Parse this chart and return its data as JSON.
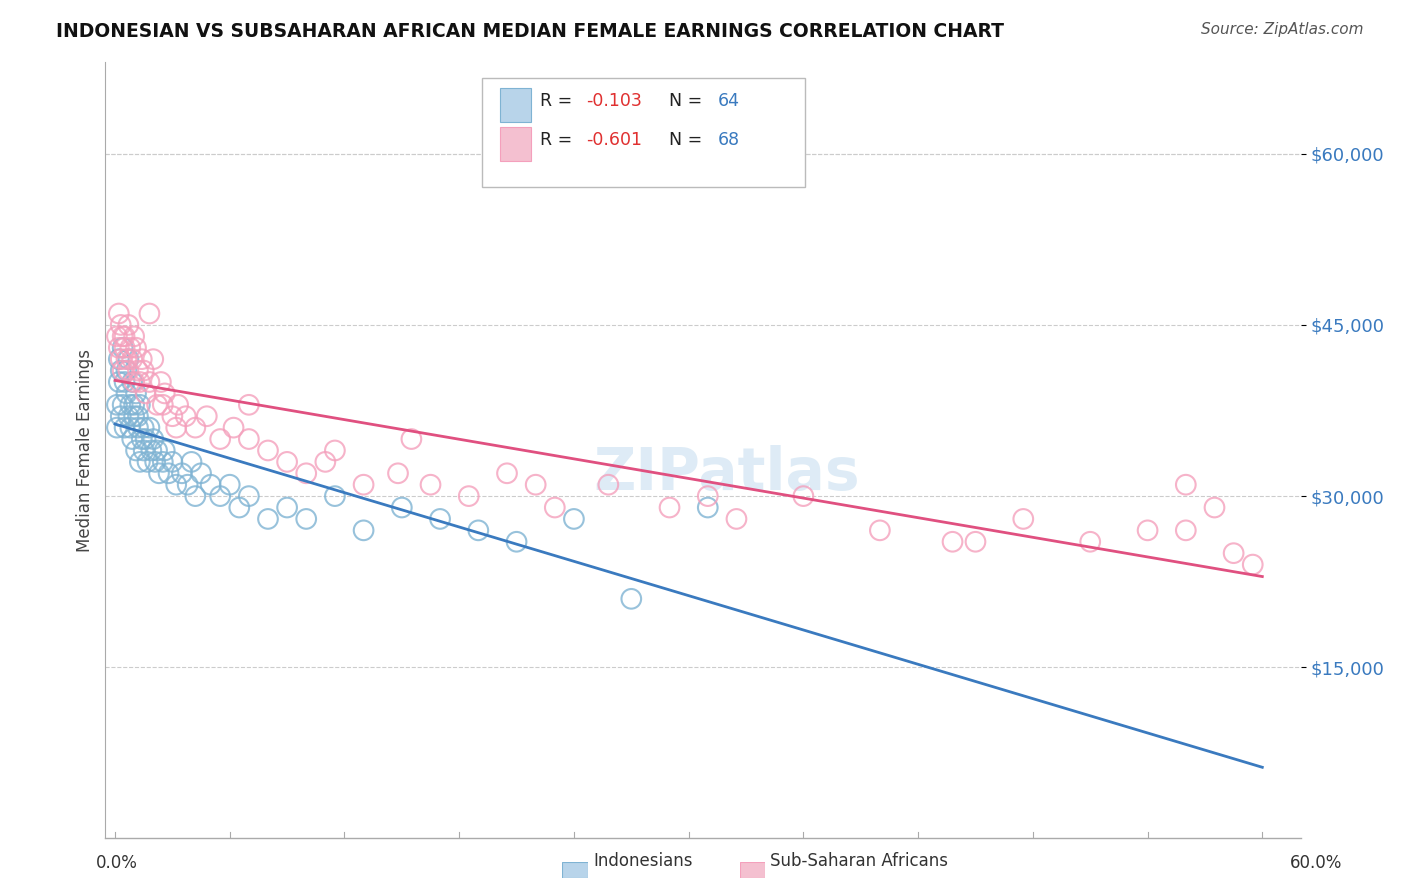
{
  "title": "INDONESIAN VS SUBSAHARAN AFRICAN MEDIAN FEMALE EARNINGS CORRELATION CHART",
  "source": "Source: ZipAtlas.com",
  "ylabel": "Median Female Earnings",
  "xlim": [
    -0.005,
    0.62
  ],
  "ylim": [
    0,
    68000
  ],
  "yticks": [
    15000,
    30000,
    45000,
    60000
  ],
  "ytick_labels": [
    "$15,000",
    "$30,000",
    "$45,000",
    "$60,000"
  ],
  "blue_color": "#7fb3d3",
  "pink_color": "#f4a0bc",
  "trend_blue_color": "#3a7abf",
  "trend_pink_color": "#e05080",
  "r_blue": "-0.103",
  "r_pink": "-0.601",
  "n_blue": "64",
  "n_pink": "68",
  "watermark": "ZIPatlas",
  "indonesian_x": [
    0.001,
    0.001,
    0.002,
    0.002,
    0.003,
    0.003,
    0.004,
    0.004,
    0.005,
    0.005,
    0.006,
    0.006,
    0.007,
    0.007,
    0.008,
    0.008,
    0.009,
    0.009,
    0.01,
    0.01,
    0.011,
    0.011,
    0.012,
    0.012,
    0.013,
    0.013,
    0.014,
    0.015,
    0.015,
    0.016,
    0.017,
    0.018,
    0.019,
    0.02,
    0.021,
    0.022,
    0.023,
    0.025,
    0.026,
    0.028,
    0.03,
    0.032,
    0.035,
    0.038,
    0.04,
    0.042,
    0.045,
    0.05,
    0.055,
    0.06,
    0.065,
    0.07,
    0.08,
    0.09,
    0.1,
    0.115,
    0.13,
    0.15,
    0.17,
    0.19,
    0.21,
    0.24,
    0.27,
    0.31
  ],
  "indonesian_y": [
    36000,
    38000,
    40000,
    42000,
    37000,
    41000,
    38000,
    43000,
    36000,
    40000,
    39000,
    41000,
    37000,
    42000,
    38000,
    36000,
    40000,
    35000,
    38000,
    37000,
    39000,
    34000,
    37000,
    36000,
    38000,
    33000,
    35000,
    36000,
    34000,
    35000,
    33000,
    36000,
    34000,
    35000,
    33000,
    34000,
    32000,
    33000,
    34000,
    32000,
    33000,
    31000,
    32000,
    31000,
    33000,
    30000,
    32000,
    31000,
    30000,
    31000,
    29000,
    30000,
    28000,
    29000,
    28000,
    30000,
    27000,
    29000,
    28000,
    27000,
    26000,
    28000,
    21000,
    29000
  ],
  "subsaharan_x": [
    0.001,
    0.002,
    0.002,
    0.003,
    0.003,
    0.004,
    0.004,
    0.005,
    0.005,
    0.006,
    0.007,
    0.007,
    0.008,
    0.009,
    0.01,
    0.01,
    0.011,
    0.012,
    0.013,
    0.014,
    0.015,
    0.016,
    0.018,
    0.02,
    0.022,
    0.024,
    0.026,
    0.03,
    0.033,
    0.037,
    0.042,
    0.048,
    0.055,
    0.062,
    0.07,
    0.08,
    0.09,
    0.1,
    0.115,
    0.13,
    0.148,
    0.165,
    0.185,
    0.205,
    0.23,
    0.258,
    0.29,
    0.325,
    0.36,
    0.4,
    0.438,
    0.475,
    0.51,
    0.54,
    0.56,
    0.575,
    0.585,
    0.595,
    0.018,
    0.025,
    0.032,
    0.07,
    0.11,
    0.155,
    0.22,
    0.31,
    0.45,
    0.56
  ],
  "subsaharan_y": [
    44000,
    46000,
    43000,
    45000,
    42000,
    44000,
    41000,
    43000,
    44000,
    42000,
    45000,
    41000,
    43000,
    42000,
    44000,
    40000,
    43000,
    41000,
    40000,
    42000,
    41000,
    39000,
    40000,
    42000,
    38000,
    40000,
    39000,
    37000,
    38000,
    37000,
    36000,
    37000,
    35000,
    36000,
    35000,
    34000,
    33000,
    32000,
    34000,
    31000,
    32000,
    31000,
    30000,
    32000,
    29000,
    31000,
    29000,
    28000,
    30000,
    27000,
    26000,
    28000,
    26000,
    27000,
    31000,
    29000,
    25000,
    24000,
    46000,
    38000,
    36000,
    38000,
    33000,
    35000,
    31000,
    30000,
    26000,
    27000
  ]
}
